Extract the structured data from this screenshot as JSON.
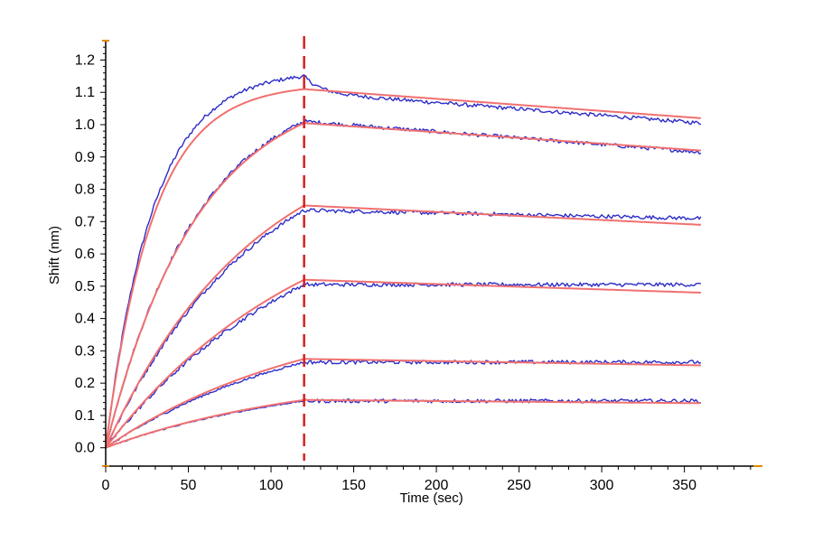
{
  "chart_data": {
    "type": "line",
    "title": "",
    "xlabel": "Time (sec)",
    "ylabel": "Shift (nm)",
    "xlim": [
      0,
      395
    ],
    "ylim": [
      -0.04,
      1.26
    ],
    "xticks": [
      0,
      50,
      100,
      150,
      200,
      250,
      300,
      350
    ],
    "xtick_labels": [
      "0",
      "50",
      "100",
      "150",
      "200",
      "250",
      "300",
      "350"
    ],
    "yticks": [
      0.0,
      0.1,
      0.2,
      0.3,
      0.4,
      0.5,
      0.6,
      0.7,
      0.8,
      0.9,
      1.0,
      1.1,
      1.2
    ],
    "ytick_labels": [
      "0.0",
      "0.1",
      "0.2",
      "0.3",
      "0.4",
      "0.5",
      "0.6",
      "0.7",
      "0.8",
      "0.9",
      "1.0",
      "1.1",
      "1.2"
    ],
    "association_end_time": 120,
    "end_time": 360,
    "grid": false,
    "legend": "none",
    "colors": {
      "data": "#2c2cc8",
      "fit": "#f07070",
      "marker": "#d42020",
      "axis": "#000000",
      "axis_end": "#e08a00"
    },
    "series": [
      {
        "role": "data",
        "assoc_end_value": 1.15,
        "dissoc_end_value": 1.005
      },
      {
        "role": "fit",
        "assoc_end_value": 1.11,
        "dissoc_end_value": 1.02
      },
      {
        "role": "data",
        "assoc_end_value": 1.01,
        "dissoc_end_value": 0.915
      },
      {
        "role": "fit",
        "assoc_end_value": 1.005,
        "dissoc_end_value": 0.92
      },
      {
        "role": "data",
        "assoc_end_value": 0.735,
        "dissoc_end_value": 0.71
      },
      {
        "role": "fit",
        "assoc_end_value": 0.75,
        "dissoc_end_value": 0.69
      },
      {
        "role": "data",
        "assoc_end_value": 0.505,
        "dissoc_end_value": 0.505
      },
      {
        "role": "fit",
        "assoc_end_value": 0.52,
        "dissoc_end_value": 0.48
      },
      {
        "role": "data",
        "assoc_end_value": 0.265,
        "dissoc_end_value": 0.265
      },
      {
        "role": "fit",
        "assoc_end_value": 0.275,
        "dissoc_end_value": 0.255
      },
      {
        "role": "data",
        "assoc_end_value": 0.145,
        "dissoc_end_value": 0.145
      },
      {
        "role": "fit",
        "assoc_end_value": 0.148,
        "dissoc_end_value": 0.138
      }
    ]
  }
}
